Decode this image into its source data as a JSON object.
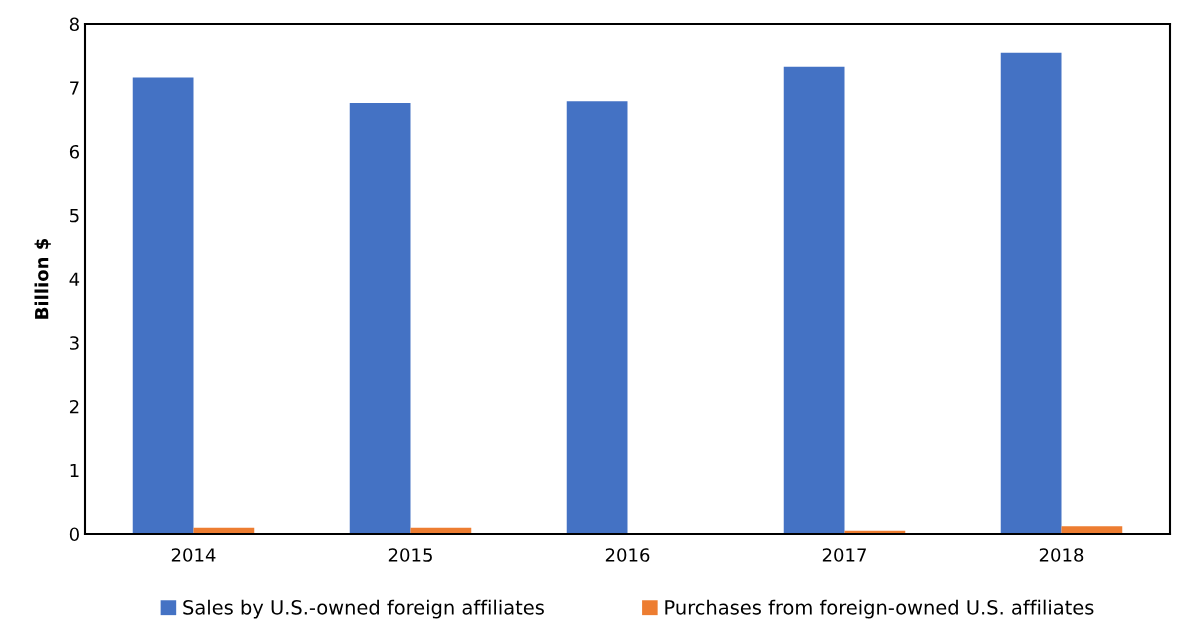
{
  "chart_data": {
    "type": "bar",
    "ylabel": "Billion $",
    "categories": [
      "2014",
      "2015",
      "2016",
      "2017",
      "2018"
    ],
    "series": [
      {
        "name": "Sales by U.S.-owned foreign affiliates",
        "color": "#4472c4",
        "values": [
          7.16,
          6.76,
          6.79,
          7.33,
          7.55
        ]
      },
      {
        "name": "Purchases from foreign-owned U.S. affiliates",
        "color": "#ed7d31",
        "values": [
          0.1,
          0.1,
          null,
          0.05,
          0.12
        ]
      }
    ],
    "ylim": [
      0,
      8
    ],
    "yticks": [
      0,
      1,
      2,
      3,
      4,
      5,
      6,
      7,
      8
    ],
    "grid": false,
    "legend": "bottom"
  }
}
